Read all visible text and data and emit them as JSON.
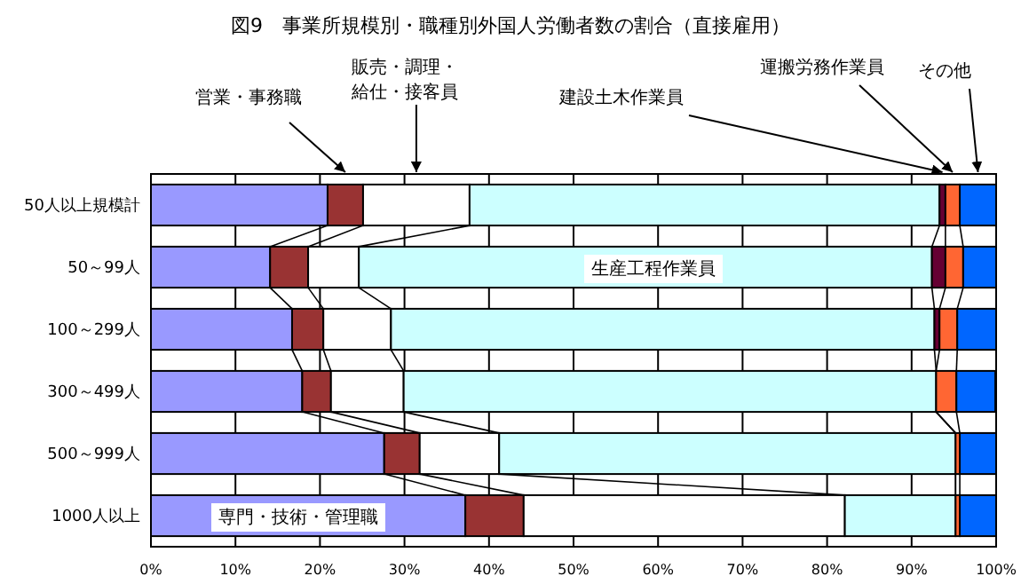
{
  "chart_data": {
    "type": "bar",
    "orientation": "horizontal",
    "stacked": true,
    "title": "図9　事業所規模別・職種別外国人労働者数の割合（直接雇用）",
    "categories": [
      "50人以上規模計",
      "50～99人",
      "100～299人",
      "300～499人",
      "500～999人",
      "1000人以上"
    ],
    "series": [
      {
        "name": "専門・技術・管理職",
        "color": "#9999ff",
        "values": [
          20.9,
          14.1,
          16.7,
          17.9,
          27.6,
          37.2
        ]
      },
      {
        "name": "営業・事務職",
        "color": "#993333",
        "values": [
          4.2,
          4.5,
          3.7,
          3.4,
          4.2,
          6.9
        ]
      },
      {
        "name": "販売・調理・給仕・接客員",
        "color": "#ffffff",
        "values": [
          12.6,
          6.0,
          8.0,
          8.6,
          9.4,
          38.0
        ]
      },
      {
        "name": "生産工程作業員",
        "color": "#ccffff",
        "values": [
          55.6,
          67.8,
          64.3,
          63.0,
          54.0,
          13.1
        ]
      },
      {
        "name": "建設土木作業員",
        "color": "#660033",
        "values": [
          0.7,
          1.6,
          0.6,
          null,
          0,
          0
        ]
      },
      {
        "name": "運搬労務作業員",
        "color": "#ff6633",
        "values": [
          1.7,
          2.1,
          2.1,
          2.4,
          0.5,
          0.5
        ]
      },
      {
        "name": "その他",
        "color": "#0066ff",
        "values": [
          4.3,
          3.9,
          4.6,
          4.6,
          4.3,
          4.3
        ]
      }
    ],
    "xlim": [
      0,
      100
    ],
    "xticks": [
      {
        "value": 0,
        "label": "0%"
      },
      {
        "value": 10,
        "label": "10%"
      },
      {
        "value": 20,
        "label": "20%"
      },
      {
        "value": 30,
        "label": "30%"
      },
      {
        "value": 40,
        "label": "40%"
      },
      {
        "value": 50,
        "label": "50%"
      },
      {
        "value": 60,
        "label": "60%"
      },
      {
        "value": 70,
        "label": "70%"
      },
      {
        "value": 80,
        "label": "80%"
      },
      {
        "value": 90,
        "label": "90%"
      },
      {
        "value": 100,
        "label": "100%"
      }
    ],
    "grid": "x"
  }
}
